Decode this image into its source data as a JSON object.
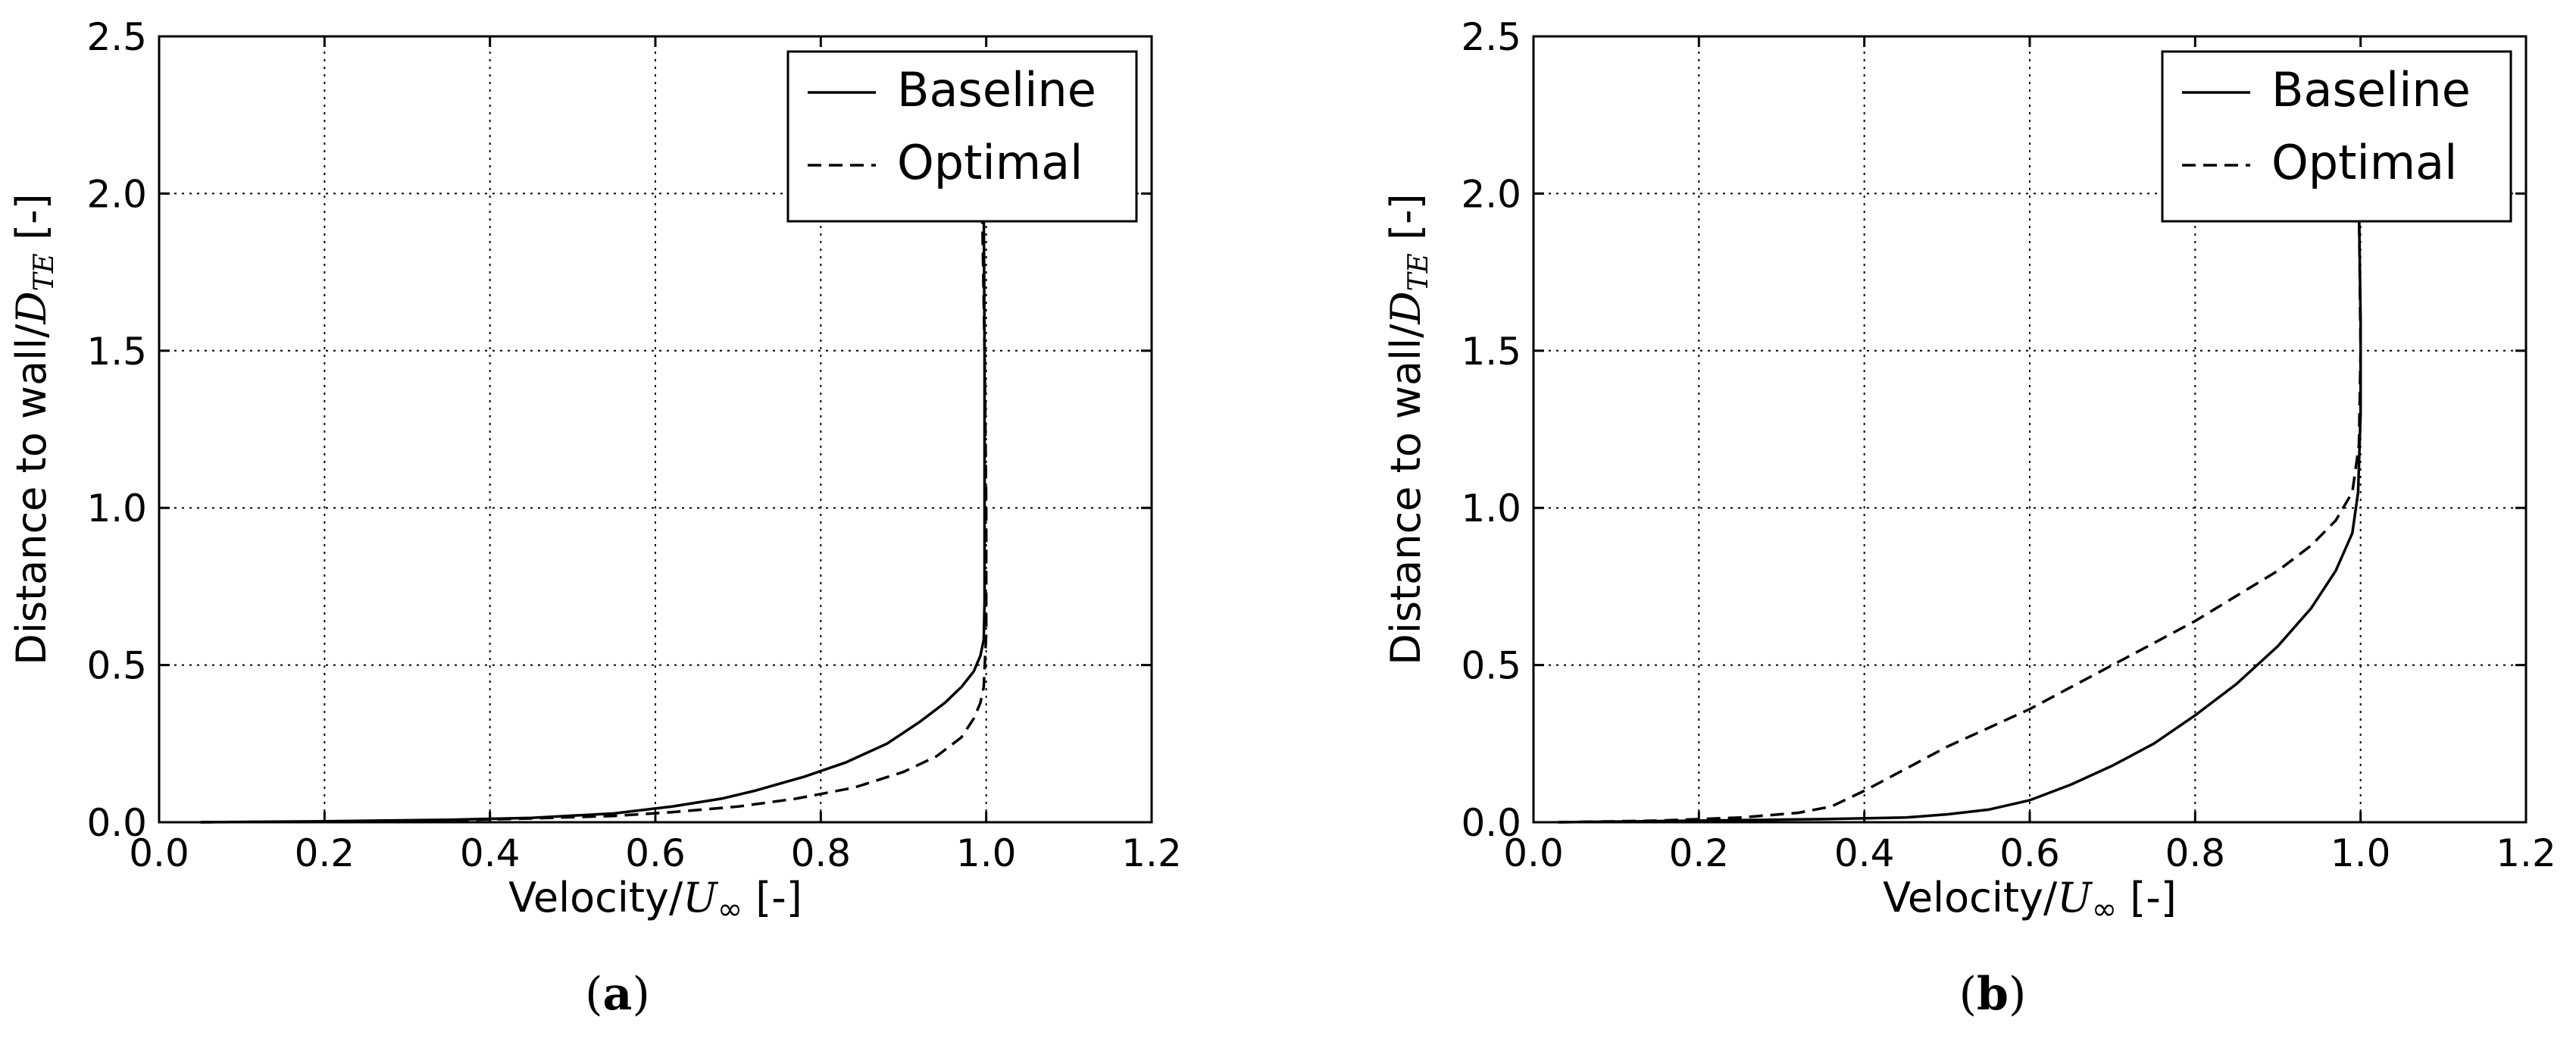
{
  "chart_data": [
    {
      "type": "line",
      "panel": "a",
      "caption_letter": "a",
      "xlabel_prefix": "Velocity/",
      "xlabel_math": "U",
      "xlabel_sub": "∞",
      "xlabel_suffix": " [-]",
      "ylabel_prefix": "Distance to wall/",
      "ylabel_math": "D",
      "ylabel_sub": "TE",
      "ylabel_suffix": " [-]",
      "xlim": [
        0.0,
        1.2
      ],
      "ylim": [
        0.0,
        2.5
      ],
      "xticks": [
        "0.0",
        "0.2",
        "0.4",
        "0.6",
        "0.8",
        "1.0",
        "1.2"
      ],
      "yticks": [
        "0.0",
        "0.5",
        "1.0",
        "1.5",
        "2.0",
        "2.5"
      ],
      "grid": true,
      "legend_position": "top-right",
      "series": [
        {
          "name": "Baseline",
          "style": "solid",
          "points": [
            [
              0.05,
              0.0
            ],
            [
              0.2,
              0.003
            ],
            [
              0.35,
              0.008
            ],
            [
              0.45,
              0.014
            ],
            [
              0.55,
              0.028
            ],
            [
              0.62,
              0.05
            ],
            [
              0.68,
              0.075
            ],
            [
              0.72,
              0.1
            ],
            [
              0.78,
              0.145
            ],
            [
              0.83,
              0.19
            ],
            [
              0.88,
              0.25
            ],
            [
              0.92,
              0.32
            ],
            [
              0.95,
              0.38
            ],
            [
              0.97,
              0.43
            ],
            [
              0.985,
              0.48
            ],
            [
              0.993,
              0.53
            ],
            [
              0.997,
              0.58
            ],
            [
              0.998,
              0.7
            ],
            [
              0.998,
              1.0
            ],
            [
              0.998,
              1.5
            ],
            [
              0.997,
              1.97
            ]
          ]
        },
        {
          "name": "Optimal",
          "style": "dashed",
          "points": [
            [
              0.05,
              0.0
            ],
            [
              0.2,
              0.002
            ],
            [
              0.35,
              0.006
            ],
            [
              0.45,
              0.012
            ],
            [
              0.55,
              0.02
            ],
            [
              0.62,
              0.032
            ],
            [
              0.7,
              0.05
            ],
            [
              0.77,
              0.075
            ],
            [
              0.84,
              0.11
            ],
            [
              0.9,
              0.16
            ],
            [
              0.94,
              0.21
            ],
            [
              0.97,
              0.27
            ],
            [
              0.985,
              0.33
            ],
            [
              0.993,
              0.38
            ],
            [
              0.997,
              0.43
            ],
            [
              1.0,
              0.6
            ],
            [
              1.0,
              1.0
            ],
            [
              0.998,
              1.5
            ],
            [
              0.995,
              1.97
            ]
          ]
        }
      ]
    },
    {
      "type": "line",
      "panel": "b",
      "caption_letter": "b",
      "xlabel_prefix": "Velocity/",
      "xlabel_math": "U",
      "xlabel_sub": "∞",
      "xlabel_suffix": " [-]",
      "ylabel_prefix": "Distance to wall/",
      "ylabel_math": "D",
      "ylabel_sub": "TE",
      "ylabel_suffix": " [-]",
      "xlim": [
        0.0,
        1.2
      ],
      "ylim": [
        0.0,
        2.5
      ],
      "xticks": [
        "0.0",
        "0.2",
        "0.4",
        "0.6",
        "0.8",
        "1.0",
        "1.2"
      ],
      "yticks": [
        "0.0",
        "0.5",
        "1.0",
        "1.5",
        "2.0",
        "2.5"
      ],
      "grid": true,
      "legend_position": "top-right",
      "series": [
        {
          "name": "Baseline",
          "style": "solid",
          "points": [
            [
              0.03,
              0.0
            ],
            [
              0.2,
              0.005
            ],
            [
              0.35,
              0.01
            ],
            [
              0.45,
              0.015
            ],
            [
              0.5,
              0.025
            ],
            [
              0.55,
              0.04
            ],
            [
              0.6,
              0.07
            ],
            [
              0.65,
              0.12
            ],
            [
              0.7,
              0.18
            ],
            [
              0.75,
              0.25
            ],
            [
              0.8,
              0.34
            ],
            [
              0.85,
              0.44
            ],
            [
              0.9,
              0.56
            ],
            [
              0.94,
              0.68
            ],
            [
              0.97,
              0.8
            ],
            [
              0.99,
              0.92
            ],
            [
              0.997,
              1.05
            ],
            [
              1.0,
              1.3
            ],
            [
              1.0,
              1.6
            ],
            [
              0.998,
              1.97
            ]
          ]
        },
        {
          "name": "Optimal",
          "style": "dashed",
          "points": [
            [
              0.03,
              0.0
            ],
            [
              0.15,
              0.005
            ],
            [
              0.25,
              0.015
            ],
            [
              0.32,
              0.03
            ],
            [
              0.36,
              0.05
            ],
            [
              0.4,
              0.1
            ],
            [
              0.45,
              0.17
            ],
            [
              0.5,
              0.24
            ],
            [
              0.55,
              0.3
            ],
            [
              0.6,
              0.36
            ],
            [
              0.65,
              0.43
            ],
            [
              0.7,
              0.5
            ],
            [
              0.75,
              0.57
            ],
            [
              0.8,
              0.64
            ],
            [
              0.85,
              0.72
            ],
            [
              0.9,
              0.8
            ],
            [
              0.94,
              0.88
            ],
            [
              0.97,
              0.96
            ],
            [
              0.99,
              1.05
            ],
            [
              0.998,
              1.2
            ],
            [
              1.0,
              1.5
            ],
            [
              0.998,
              1.97
            ]
          ]
        }
      ]
    }
  ]
}
